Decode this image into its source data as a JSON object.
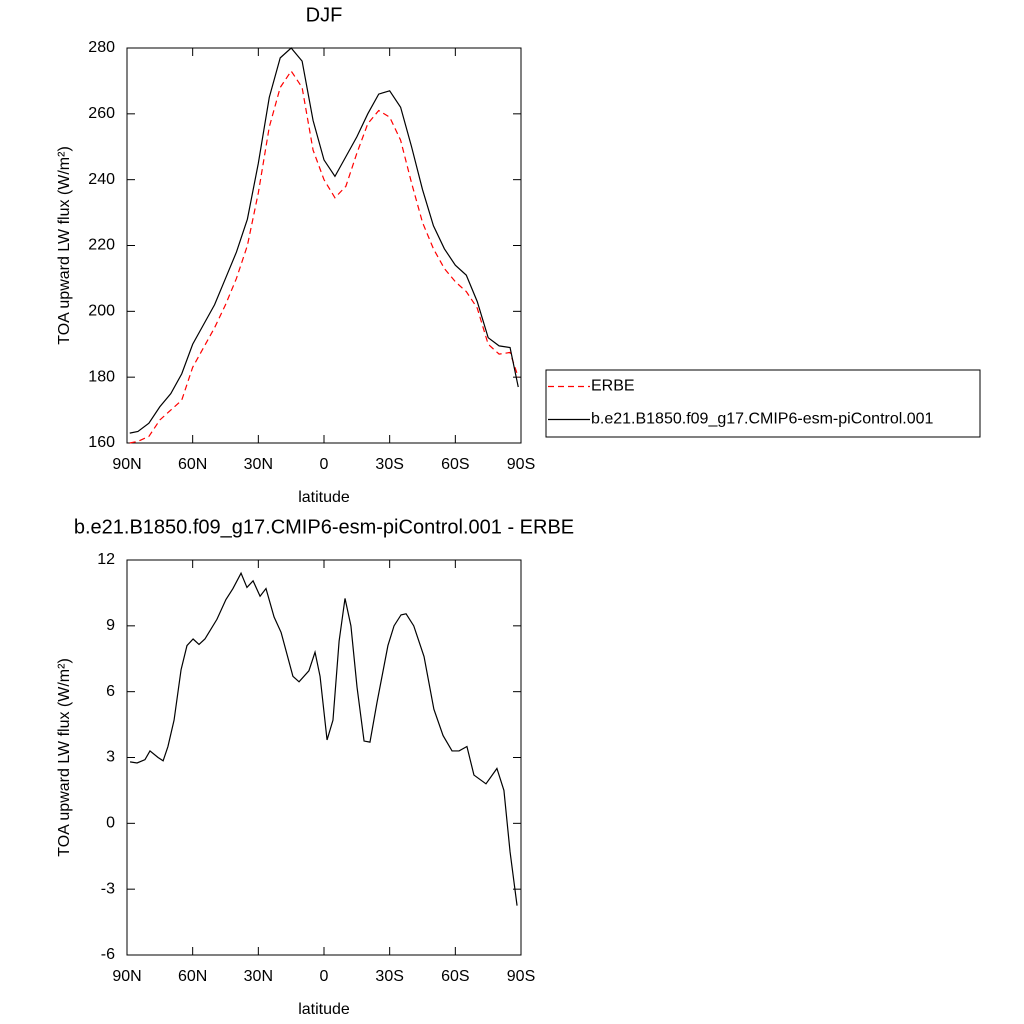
{
  "chart_data": [
    {
      "type": "line",
      "title": "DJF",
      "xlabel": "latitude",
      "ylabel": "TOA upward LW flux (W/m²)",
      "x": [
        88.75,
        85,
        80,
        75,
        70,
        65,
        60,
        55,
        50,
        45,
        40,
        35,
        30,
        25,
        20,
        15,
        10,
        5,
        0,
        -5,
        -10,
        -15,
        -20,
        -25,
        -30,
        -35,
        -40,
        -45,
        -50,
        -55,
        -60,
        -65,
        -70,
        -75,
        -80,
        -85,
        -88.75
      ],
      "series": [
        {
          "name": "ERBE",
          "color": "#ff0000",
          "line_style": "dashed",
          "values": [
            160,
            160.5,
            162,
            167,
            170,
            173,
            183,
            189,
            195,
            202,
            210,
            220,
            236,
            256,
            268,
            273,
            268,
            249,
            240,
            234.5,
            238,
            248,
            257,
            261,
            259,
            252,
            239,
            227,
            219,
            213,
            209,
            206,
            201,
            190,
            187,
            187.5,
            180
          ]
        },
        {
          "name": "b.e21.B1850.f09_g17.CMIP6-esm-piControl.001",
          "color": "#000000",
          "line_style": "solid",
          "values": [
            163,
            163.5,
            166,
            171,
            175,
            181,
            190,
            196,
            202,
            210,
            218,
            228,
            245,
            265,
            277,
            280,
            276,
            258,
            246,
            241,
            247,
            253,
            260,
            266,
            267,
            262,
            250,
            237,
            226,
            219,
            214,
            211,
            203,
            192,
            189.5,
            189,
            177
          ]
        }
      ],
      "xlim": [
        90,
        -90
      ],
      "xticks": [
        {
          "value": 90,
          "label": "90N"
        },
        {
          "value": 60,
          "label": "60N"
        },
        {
          "value": 30,
          "label": "30N"
        },
        0,
        {
          "value": -30,
          "label": "30S"
        },
        {
          "value": -60,
          "label": "60S"
        },
        {
          "value": -90,
          "label": "90S"
        }
      ],
      "ylim": [
        160,
        280
      ],
      "yticks": [
        160,
        180,
        200,
        220,
        240,
        260,
        280
      ],
      "legend": "right"
    },
    {
      "type": "line",
      "title": "b.e21.B1850.f09_g17.CMIP6-esm-piControl.001 - ERBE",
      "xlabel": "latitude",
      "ylabel": "TOA upward LW flux (W/m²)",
      "x": [
        88.6,
        85.4,
        81.8,
        79.5,
        75.8,
        73.5,
        71.3,
        68.5,
        65.3,
        62.6,
        59.8,
        57.1,
        54.4,
        48.9,
        44.8,
        41.6,
        37.9,
        35.2,
        32.4,
        29.2,
        26.5,
        22.8,
        19.6,
        14.2,
        11.4,
        6.9,
        4.1,
        1.8,
        -1.4,
        -4.1,
        -6.9,
        -9.6,
        -12.3,
        -15.1,
        -18.3,
        -21,
        -24.2,
        -29.2,
        -32,
        -35.2,
        -37.5,
        -41,
        -45.7,
        -50.2,
        -54.4,
        -58.5,
        -61.7,
        -65.3,
        -68.5,
        -74,
        -79,
        -82.2,
        -85,
        -88.2
      ],
      "values": [
        2.8,
        2.75,
        2.9,
        3.3,
        3.0,
        2.85,
        3.5,
        4.7,
        7.0,
        8.1,
        8.4,
        8.15,
        8.4,
        9.3,
        10.2,
        10.7,
        11.4,
        10.75,
        11.05,
        10.35,
        10.7,
        9.4,
        8.7,
        6.7,
        6.45,
        6.95,
        7.8,
        6.7,
        3.8,
        4.7,
        8.3,
        10.25,
        9.0,
        6.2,
        3.75,
        3.7,
        5.5,
        8.1,
        9.0,
        9.5,
        9.55,
        9.0,
        7.6,
        5.2,
        4.0,
        3.3,
        3.3,
        3.5,
        2.2,
        1.8,
        2.5,
        1.5,
        -1.3,
        -3.75
      ],
      "color": "#000000",
      "xlim": [
        90,
        -90
      ],
      "xticks": [
        {
          "value": 90,
          "label": "90N"
        },
        {
          "value": 60,
          "label": "60N"
        },
        {
          "value": 30,
          "label": "30N"
        },
        0,
        {
          "value": -30,
          "label": "30S"
        },
        {
          "value": -60,
          "label": "60S"
        },
        {
          "value": -90,
          "label": "90S"
        }
      ],
      "ylim": [
        -6,
        12
      ],
      "yticks": [
        -6,
        -3,
        0,
        3,
        6,
        9,
        12
      ]
    }
  ]
}
